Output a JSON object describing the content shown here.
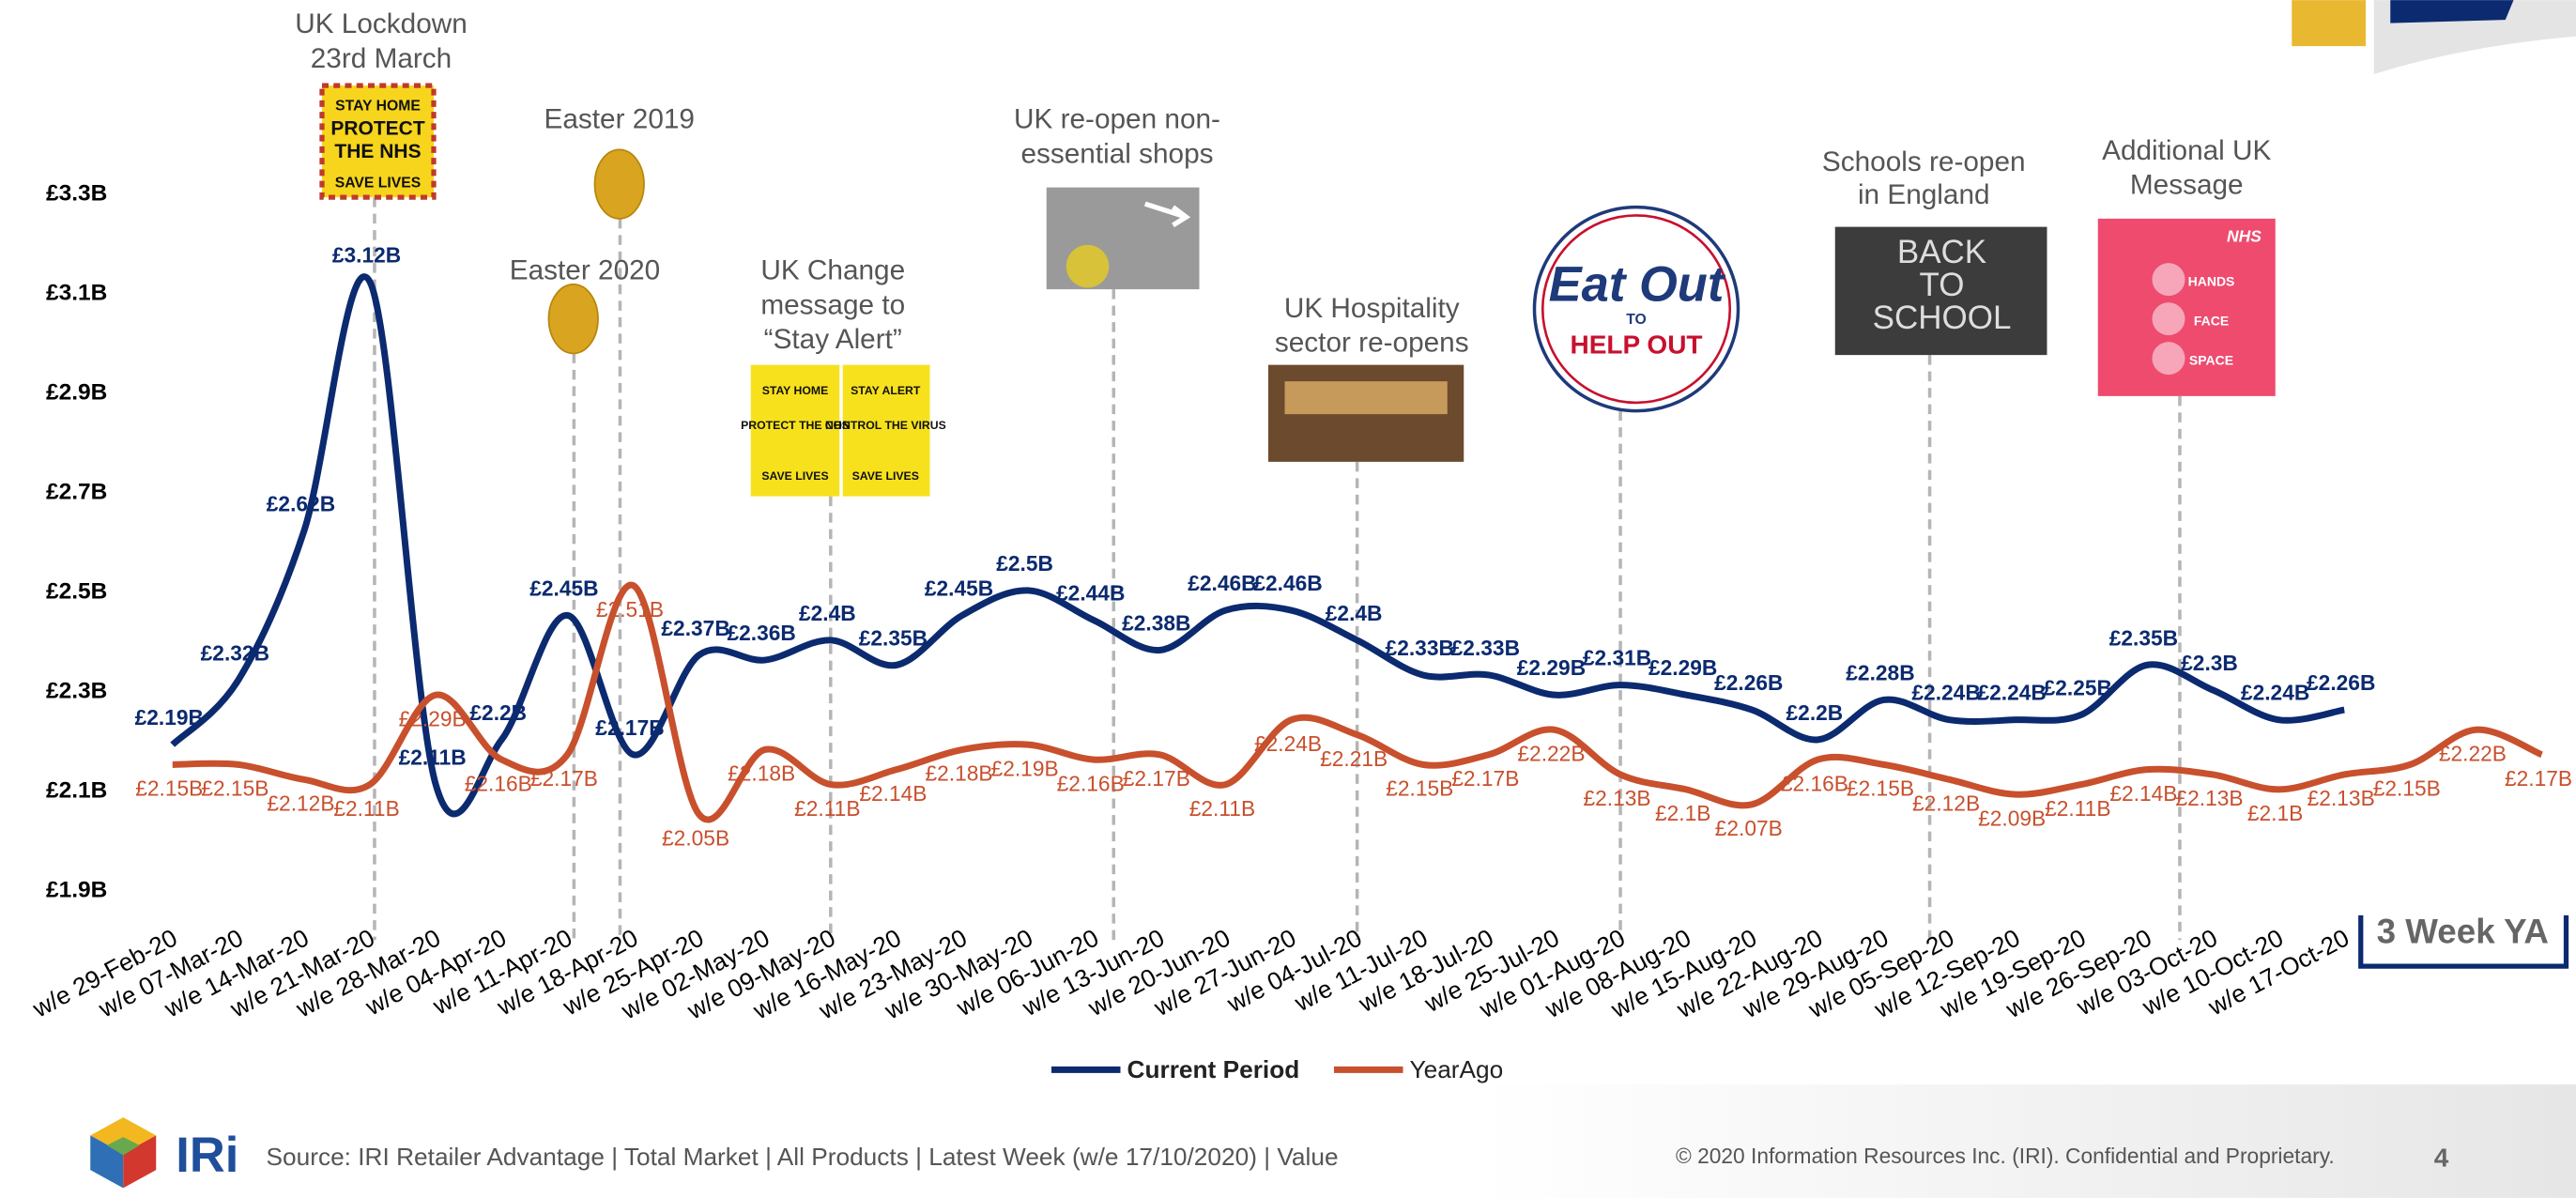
{
  "chart_data": {
    "type": "line",
    "categories": [
      "w/e 29-Feb-20",
      "w/e 07-Mar-20",
      "w/e 14-Mar-20",
      "w/e 21-Mar-20",
      "w/e 28-Mar-20",
      "w/e 04-Apr-20",
      "w/e 11-Apr-20",
      "w/e 18-Apr-20",
      "w/e 25-Apr-20",
      "w/e 02-May-20",
      "w/e 09-May-20",
      "w/e 16-May-20",
      "w/e 23-May-20",
      "w/e 30-May-20",
      "w/e 06-Jun-20",
      "w/e 13-Jun-20",
      "w/e 20-Jun-20",
      "w/e 27-Jun-20",
      "w/e 04-Jul-20",
      "w/e 11-Jul-20",
      "w/e 18-Jul-20",
      "w/e 25-Jul-20",
      "w/e 01-Aug-20",
      "w/e 08-Aug-20",
      "w/e 15-Aug-20",
      "w/e 22-Aug-20",
      "w/e 29-Aug-20",
      "w/e 05-Sep-20",
      "w/e 12-Sep-20",
      "w/e 19-Sep-20",
      "w/e 26-Sep-20",
      "w/e 03-Oct-20",
      "w/e 10-Oct-20",
      "w/e 17-Oct-20",
      null,
      null,
      null
    ],
    "series": [
      {
        "name": "Current Period",
        "color": "#0b2a6f",
        "values": [
          2.19,
          2.32,
          2.62,
          3.12,
          2.11,
          2.2,
          2.45,
          2.17,
          2.37,
          2.36,
          2.4,
          2.35,
          2.45,
          2.5,
          2.44,
          2.38,
          2.46,
          2.46,
          2.4,
          2.33,
          2.33,
          2.29,
          2.31,
          2.29,
          2.26,
          2.2,
          2.28,
          2.24,
          2.24,
          2.25,
          2.35,
          2.3,
          2.24,
          2.26,
          null,
          null,
          null
        ],
        "value_labels": [
          "£2.19B",
          "£2.32B",
          "£2.62B",
          "£3.12B",
          "£2.11B",
          "£2.2B",
          "£2.45B",
          "£2.17B",
          "£2.37B",
          "£2.36B",
          "£2.4B",
          "£2.35B",
          "£2.45B",
          "£2.5B",
          "£2.44B",
          "£2.38B",
          "£2.46B",
          "£2.46B",
          "£2.4B",
          "£2.33B",
          "£2.33B",
          "£2.29B",
          "£2.31B",
          "£2.29B",
          "£2.26B",
          "£2.2B",
          "£2.28B",
          "£2.24B",
          "£2.24B",
          "£2.25B",
          "£2.35B",
          "£2.3B",
          "£2.24B",
          "£2.26B",
          null,
          null,
          null
        ]
      },
      {
        "name": "YearAgo",
        "color": "#c8502d",
        "values": [
          2.15,
          2.15,
          2.12,
          2.11,
          2.29,
          2.16,
          2.17,
          2.51,
          2.05,
          2.18,
          2.11,
          2.14,
          2.18,
          2.19,
          2.16,
          2.17,
          2.11,
          2.24,
          2.21,
          2.15,
          2.17,
          2.22,
          2.13,
          2.1,
          2.07,
          2.16,
          2.15,
          2.12,
          2.09,
          2.11,
          2.14,
          2.13,
          2.1,
          2.13,
          2.15,
          2.22,
          2.17
        ],
        "value_labels": [
          "£2.15B",
          "£2.15B",
          "£2.12B",
          "£2.11B",
          "£2.29B",
          "£2.16B",
          "£2.17B",
          "£2.51B",
          "£2.05B",
          "£2.18B",
          "£2.11B",
          "£2.14B",
          "£2.18B",
          "£2.19B",
          "£2.16B",
          "£2.17B",
          "£2.11B",
          "£2.24B",
          "£2.21B",
          "£2.15B",
          "£2.17B",
          "£2.22B",
          "£2.13B",
          "£2.1B",
          "£2.07B",
          "£2.16B",
          "£2.15B",
          "£2.12B",
          "£2.09B",
          "£2.11B",
          "£2.14B",
          "£2.13B",
          "£2.1B",
          "£2.13B",
          "£2.15B",
          "£2.22B",
          "£2.17B"
        ]
      }
    ],
    "ylim": [
      1.9,
      3.3
    ],
    "yticks": [
      {
        "value": 1.9,
        "label": "£1.9B"
      },
      {
        "value": 2.1,
        "label": "£2.1B"
      },
      {
        "value": 2.3,
        "label": "£2.3B"
      },
      {
        "value": 2.5,
        "label": "£2.5B"
      },
      {
        "value": 2.7,
        "label": "£2.7B"
      },
      {
        "value": 2.9,
        "label": "£2.9B"
      },
      {
        "value": 3.1,
        "label": "£3.1B"
      },
      {
        "value": 3.3,
        "label": "£3.3B"
      }
    ],
    "legend": "bottom",
    "annotations": [
      {
        "lines": [
          "UK Lockdown",
          "23rd March"
        ],
        "image_text": [
          "STAY HOME",
          "PROTECT",
          "THE NHS",
          "SAVE LIVES"
        ]
      },
      {
        "lines": [
          "Easter 2019"
        ]
      },
      {
        "lines": [
          "Easter 2020"
        ]
      },
      {
        "lines": [
          "UK Change",
          "message to",
          "“Stay Alert”"
        ],
        "image_text": [
          "STAY HOME",
          "PROTECT THE NHS",
          "SAVE LIVES",
          "STAY ALERT",
          "CONTROL THE VIRUS",
          "SAVE LIVES"
        ]
      },
      {
        "lines": [
          "UK re-open non-",
          "essential shops"
        ]
      },
      {
        "lines": [
          "UK Hospitality",
          "sector re-opens"
        ]
      },
      {
        "lines": [],
        "image_text": [
          "Eat Out",
          "TO",
          "HELP OUT"
        ]
      },
      {
        "lines": [
          "Schools re-open",
          "in England"
        ],
        "image_text": [
          "BACK",
          "TO",
          "SCHOOL"
        ]
      },
      {
        "lines": [
          "Additional UK",
          "Message"
        ],
        "image_text": [
          "NHS",
          "HANDS",
          "FACE",
          "SPACE"
        ]
      }
    ],
    "note": "3 Week YA"
  },
  "footer": {
    "logo": "IRi",
    "source": "Source: IRI Retailer Advantage | Total Market | All Products | Latest Week (w/e 17/10/2020) | Value",
    "copyright": "© 2020 Information Resources Inc. (IRI). Confidential and Proprietary.",
    "page": "4"
  }
}
